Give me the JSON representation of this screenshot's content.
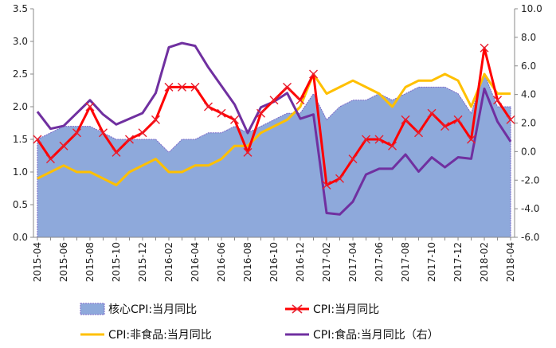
{
  "chart_data": {
    "type": "line",
    "title": "",
    "x": [
      "2015-04",
      "2015-05",
      "2015-06",
      "2015-07",
      "2015-08",
      "2015-09",
      "2015-10",
      "2015-11",
      "2015-12",
      "2016-01",
      "2016-02",
      "2016-03",
      "2016-04",
      "2016-05",
      "2016-06",
      "2016-07",
      "2016-08",
      "2016-09",
      "2016-10",
      "2016-11",
      "2016-12",
      "2017-01",
      "2017-02",
      "2017-03",
      "2017-04",
      "2017-05",
      "2017-06",
      "2017-07",
      "2017-08",
      "2017-09",
      "2017-10",
      "2017-11",
      "2017-12",
      "2018-01",
      "2018-02",
      "2018-03",
      "2018-04"
    ],
    "x_tick_labels": [
      "2015-04",
      "2015-06",
      "2015-08",
      "2015-10",
      "2015-12",
      "2016-02",
      "2016-04",
      "2016-06",
      "2016-08",
      "2016-10",
      "2016-12",
      "2017-02",
      "2017-04",
      "2017-06",
      "2017-08",
      "2017-10",
      "2017-12",
      "2018-02",
      "2018-04"
    ],
    "y_left": {
      "min": 0.0,
      "max": 3.5,
      "ticks": [
        "0.0",
        "0.5",
        "1.0",
        "1.5",
        "2.0",
        "2.5",
        "3.0",
        "3.5"
      ]
    },
    "y_right": {
      "min": -6.0,
      "max": 10.0,
      "ticks": [
        "-6.0",
        "-4.0",
        "-2.0",
        "0.0",
        "2.0",
        "4.0",
        "6.0",
        "8.0",
        "10.0"
      ]
    },
    "grid": false,
    "legend_position": "bottom",
    "series": [
      {
        "name": "核心CPI:当月同比",
        "kind": "area",
        "axis": "left",
        "color": "#8EA9DB",
        "values": [
          1.5,
          1.6,
          1.7,
          1.7,
          1.7,
          1.6,
          1.5,
          1.5,
          1.5,
          1.5,
          1.3,
          1.5,
          1.5,
          1.6,
          1.6,
          1.7,
          1.6,
          1.7,
          1.8,
          1.9,
          1.9,
          2.2,
          1.8,
          2.0,
          2.1,
          2.1,
          2.2,
          2.1,
          2.2,
          2.3,
          2.3,
          2.3,
          2.2,
          1.9,
          2.5,
          2.0,
          2.0
        ]
      },
      {
        "name": "CPI:当月同比",
        "kind": "line-marker",
        "axis": "left",
        "color": "#FF0000",
        "values": [
          1.5,
          1.2,
          1.4,
          1.6,
          2.0,
          1.6,
          1.3,
          1.5,
          1.6,
          1.8,
          2.3,
          2.3,
          2.3,
          2.0,
          1.9,
          1.8,
          1.3,
          1.9,
          2.1,
          2.3,
          2.1,
          2.5,
          0.8,
          0.9,
          1.2,
          1.5,
          1.5,
          1.4,
          1.8,
          1.6,
          1.9,
          1.7,
          1.8,
          1.5,
          2.9,
          2.1,
          1.8
        ]
      },
      {
        "name": "CPI:非食品:当月同比",
        "kind": "line",
        "axis": "left",
        "color": "#FFC000",
        "values": [
          0.9,
          1.0,
          1.1,
          1.0,
          1.0,
          0.9,
          0.8,
          1.0,
          1.1,
          1.2,
          1.0,
          1.0,
          1.1,
          1.1,
          1.2,
          1.4,
          1.4,
          1.6,
          1.7,
          1.8,
          2.0,
          2.5,
          2.2,
          2.3,
          2.4,
          2.3,
          2.2,
          2.0,
          2.3,
          2.4,
          2.4,
          2.5,
          2.4,
          2.0,
          2.5,
          2.2,
          2.2
        ]
      },
      {
        "name": "CPI:食品:当月同比（右）",
        "kind": "line",
        "axis": "right",
        "color": "#7030A0",
        "values": [
          2.8,
          1.6,
          1.8,
          2.7,
          3.6,
          2.6,
          1.9,
          2.3,
          2.7,
          4.1,
          7.3,
          7.6,
          7.4,
          5.9,
          4.6,
          3.3,
          1.3,
          3.1,
          3.5,
          4.1,
          2.3,
          2.6,
          -4.3,
          -4.4,
          -3.5,
          -1.6,
          -1.2,
          -1.2,
          -0.2,
          -1.4,
          -0.4,
          -1.1,
          -0.4,
          -0.5,
          4.4,
          2.1,
          0.7
        ]
      }
    ]
  }
}
